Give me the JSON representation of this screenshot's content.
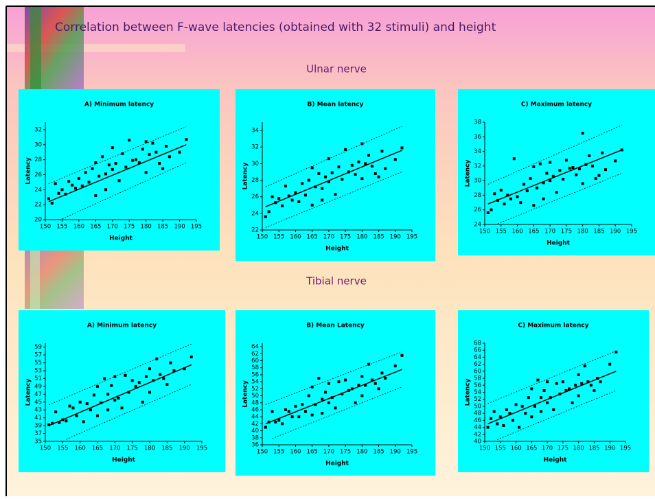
{
  "title": "Correlation between F-wave latencies (obtained with 32 stimuli) and height",
  "sections": [
    "Ulnar nerve",
    "Tibial nerve"
  ],
  "chart_data": [
    {
      "type": "scatter",
      "title": "A) Minimum latency",
      "xlabel": "Height",
      "ylabel": "Latency",
      "xlim": [
        150,
        195
      ],
      "xticks": [
        150,
        155,
        160,
        165,
        170,
        175,
        180,
        185,
        190,
        195
      ],
      "ylim": [
        20,
        33
      ],
      "yticks": [
        20,
        22,
        24,
        26,
        28,
        30,
        32
      ],
      "color": "#000000",
      "x": [
        151,
        152,
        153,
        154,
        155,
        156,
        157,
        158,
        159,
        160,
        161,
        162,
        163,
        164,
        165,
        165,
        166,
        167,
        168,
        168,
        169,
        170,
        170,
        171,
        172,
        173,
        174,
        175,
        176,
        177,
        178,
        179,
        180,
        180,
        181,
        182,
        183,
        184,
        185,
        186,
        187,
        190,
        192
      ],
      "values": [
        22.8,
        22.2,
        24.8,
        23.5,
        24,
        23.4,
        25.1,
        24.6,
        24.2,
        25.5,
        24.5,
        26.3,
        25.0,
        26.8,
        23.2,
        27.6,
        25.8,
        28.4,
        26.1,
        24.0,
        27.3,
        26.7,
        29.6,
        27.5,
        25.2,
        28.8,
        27.0,
        30.6,
        27.9,
        28.0,
        27.6,
        29.4,
        30.4,
        26.3,
        28.7,
        30.2,
        29.0,
        27.5,
        26.8,
        29.8,
        28.4,
        29.0,
        30.7
      ],
      "fit": {
        "x": [
          151,
          192
        ],
        "values": [
          22.4,
          30.0
        ]
      },
      "upper_band": {
        "x": [
          151,
          192
        ],
        "values": [
          24.8,
          32.4
        ]
      },
      "lower_band": {
        "x": [
          155,
          192
        ],
        "values": [
          20.1,
          27.6
        ]
      }
    },
    {
      "type": "scatter",
      "title": "B) Mean latency",
      "xlabel": "Height",
      "ylabel": "Latency",
      "xlim": [
        150,
        195
      ],
      "xticks": [
        150,
        155,
        160,
        165,
        170,
        175,
        180,
        185,
        190,
        195
      ],
      "ylim": [
        22,
        35
      ],
      "yticks": [
        22,
        24,
        26,
        28,
        30,
        32,
        34
      ],
      "color": "#000000",
      "x": [
        151,
        152,
        153,
        154,
        155,
        156,
        157,
        158,
        159,
        160,
        161,
        162,
        163,
        164,
        165,
        165,
        166,
        167,
        168,
        168,
        169,
        170,
        170,
        171,
        172,
        173,
        174,
        175,
        176,
        177,
        178,
        179,
        180,
        180,
        181,
        182,
        183,
        184,
        185,
        186,
        187,
        190,
        192
      ],
      "values": [
        23.6,
        24.2,
        26.0,
        25.3,
        25.8,
        24.9,
        27.3,
        26.1,
        25.6,
        26.5,
        25.4,
        27.6,
        26.2,
        28.0,
        25.0,
        29.5,
        27.2,
        28.8,
        27.0,
        25.6,
        28.4,
        27.8,
        30.6,
        28.9,
        26.3,
        29.6,
        28.1,
        31.7,
        29.0,
        29.8,
        28.7,
        30.2,
        32.4,
        28.2,
        30.0,
        31.0,
        29.7,
        28.8,
        28.4,
        31.5,
        29.4,
        30.5,
        31.9
      ],
      "fit": {
        "x": [
          151,
          192
        ],
        "values": [
          24.8,
          31.6
        ]
      },
      "upper_band": {
        "x": [
          151,
          192
        ],
        "values": [
          27.2,
          34.5
        ]
      },
      "lower_band": {
        "x": [
          151,
          192
        ],
        "values": [
          22.3,
          29.0
        ]
      }
    },
    {
      "type": "scatter",
      "title": "C) Maximum latency",
      "xlabel": "Height",
      "ylabel": "Latency",
      "xlim": [
        150,
        195
      ],
      "xticks": [
        150,
        155,
        160,
        165,
        170,
        175,
        180,
        185,
        190,
        195
      ],
      "ylim": [
        24,
        38
      ],
      "yticks": [
        24,
        26,
        28,
        30,
        32,
        34,
        36,
        38
      ],
      "color": "#000000",
      "x": [
        151,
        152,
        153,
        154,
        155,
        156,
        157,
        158,
        159,
        160,
        161,
        162,
        163,
        164,
        165,
        165,
        166,
        167,
        168,
        168,
        169,
        170,
        170,
        171,
        172,
        173,
        174,
        175,
        176,
        177,
        178,
        179,
        180,
        180,
        181,
        182,
        183,
        184,
        185,
        186,
        187,
        190,
        192
      ],
      "values": [
        25.6,
        26.0,
        28.2,
        27.3,
        28.7,
        26.8,
        28.0,
        27.5,
        33.0,
        27.8,
        27.0,
        29.5,
        28.6,
        30.3,
        26.6,
        31.9,
        29.0,
        32.3,
        29.7,
        27.5,
        31.0,
        30.0,
        32.5,
        30.6,
        28.4,
        31.4,
        30.2,
        32.8,
        31.7,
        31.8,
        30.8,
        31.6,
        36.5,
        29.6,
        32.2,
        33.4,
        32.0,
        30.3,
        30.7,
        33.8,
        31.5,
        32.7,
        34.2
      ],
      "fit": {
        "x": [
          151,
          192
        ],
        "values": [
          26.8,
          34.2
        ]
      },
      "upper_band": {
        "x": [
          151,
          192
        ],
        "values": [
          29.5,
          37.6
        ]
      },
      "lower_band": {
        "x": [
          154,
          192
        ],
        "values": [
          24.1,
          31.0
        ]
      }
    },
    {
      "type": "scatter",
      "title": "A) Minimum latency",
      "xlabel": "Height",
      "ylabel": "Latency",
      "xlim": [
        150,
        195
      ],
      "xticks": [
        150,
        155,
        160,
        165,
        170,
        175,
        180,
        185,
        190,
        195
      ],
      "ylim": [
        35,
        60
      ],
      "yticks": [
        35,
        37,
        39,
        41,
        43,
        45,
        47,
        49,
        51,
        53,
        55,
        57,
        59
      ],
      "color": "#000000",
      "x": [
        151,
        152,
        153,
        154,
        155,
        156,
        157,
        158,
        159,
        160,
        161,
        162,
        163,
        164,
        165,
        165,
        166,
        167,
        168,
        168,
        169,
        170,
        170,
        171,
        172,
        173,
        174,
        175,
        176,
        177,
        178,
        179,
        180,
        180,
        181,
        182,
        183,
        184,
        185,
        186,
        187,
        190,
        192
      ],
      "values": [
        39.2,
        39.6,
        42.5,
        39.8,
        40.5,
        40.2,
        44.0,
        43.5,
        41.5,
        45.0,
        40.0,
        44.6,
        43.0,
        46.8,
        41.5,
        49.0,
        44.8,
        51.0,
        47.0,
        43.0,
        49.2,
        45.5,
        51.5,
        46.0,
        43.5,
        51.8,
        47.5,
        50.5,
        49.0,
        50.0,
        45.0,
        51.5,
        53.5,
        47.5,
        50.5,
        56.0,
        52.0,
        51.0,
        49.5,
        55.0,
        53.0,
        53.5,
        56.5
      ],
      "fit": {
        "x": [
          151,
          192
        ],
        "values": [
          39.0,
          54.5
        ]
      },
      "upper_band": {
        "x": [
          151,
          192
        ],
        "values": [
          44.3,
          59.8
        ]
      },
      "lower_band": {
        "x": [
          156,
          192
        ],
        "values": [
          35.5,
          49.5
        ]
      }
    },
    {
      "type": "scatter",
      "title": "B) Mean Latency",
      "xlabel": "Height",
      "ylabel": "Latency",
      "xlim": [
        150,
        195
      ],
      "xticks": [
        150,
        155,
        160,
        165,
        170,
        175,
        180,
        185,
        190,
        195
      ],
      "ylim": [
        36,
        65
      ],
      "yticks": [
        36,
        38,
        40,
        42,
        44,
        46,
        48,
        50,
        52,
        54,
        56,
        58,
        60,
        62,
        64
      ],
      "color": "#000000",
      "x": [
        151,
        152,
        153,
        154,
        155,
        156,
        157,
        158,
        159,
        160,
        161,
        162,
        163,
        164,
        165,
        165,
        166,
        167,
        168,
        168,
        169,
        170,
        170,
        171,
        172,
        173,
        174,
        175,
        176,
        177,
        178,
        179,
        180,
        180,
        181,
        182,
        183,
        184,
        185,
        186,
        187,
        190,
        192
      ],
      "values": [
        41.0,
        42.5,
        45.5,
        42.5,
        43.0,
        42.0,
        46.0,
        45.5,
        44.0,
        47.0,
        44.0,
        47.5,
        45.5,
        50.0,
        44.5,
        52.5,
        47.5,
        55.0,
        49.0,
        45.0,
        51.0,
        48.0,
        53.5,
        49.5,
        46.5,
        54.0,
        50.5,
        54.5,
        51.5,
        52.0,
        48.0,
        53.0,
        55.5,
        50.0,
        53.0,
        59.0,
        54.5,
        53.5,
        52.0,
        56.5,
        55.0,
        58.5,
        61.5
      ],
      "fit": {
        "x": [
          151,
          192
        ],
        "values": [
          42.0,
          57.5
        ]
      },
      "upper_band": {
        "x": [
          151,
          192
        ],
        "values": [
          47.5,
          62.5
        ]
      },
      "lower_band": {
        "x": [
          153,
          192
        ],
        "values": [
          37.8,
          52.5
        ]
      }
    },
    {
      "type": "scatter",
      "title": "C) Maximum latency",
      "xlabel": "Height",
      "ylabel": "Latency",
      "xlim": [
        150,
        195
      ],
      "xticks": [
        150,
        155,
        160,
        165,
        170,
        175,
        180,
        185,
        190,
        195
      ],
      "ylim": [
        40,
        68
      ],
      "yticks": [
        40,
        42,
        44,
        46,
        48,
        50,
        52,
        54,
        56,
        58,
        60,
        62,
        64,
        66,
        68
      ],
      "color": "#000000",
      "x": [
        151,
        152,
        153,
        154,
        155,
        156,
        157,
        158,
        159,
        160,
        161,
        162,
        163,
        164,
        165,
        165,
        166,
        167,
        168,
        168,
        169,
        170,
        170,
        171,
        172,
        173,
        174,
        175,
        176,
        177,
        178,
        179,
        180,
        180,
        181,
        182,
        183,
        184,
        185,
        186,
        187,
        190,
        192
      ],
      "values": [
        44.0,
        46.5,
        48.5,
        45.0,
        47.0,
        44.5,
        49.0,
        48.0,
        46.0,
        50.5,
        44.0,
        50.0,
        48.0,
        52.5,
        47.0,
        55.0,
        50.0,
        57.5,
        52.5,
        48.5,
        54.5,
        51.0,
        57.0,
        52.5,
        49.0,
        56.5,
        53.5,
        57.0,
        54.5,
        55.0,
        51.0,
        56.0,
        59.0,
        53.0,
        56.5,
        61.5,
        57.0,
        56.0,
        54.5,
        58.0,
        57.0,
        62.0,
        65.5
      ],
      "fit": {
        "x": [
          151,
          192
        ],
        "values": [
          45.0,
          60.0
        ]
      },
      "upper_band": {
        "x": [
          151,
          192
        ],
        "values": [
          50.8,
          65.8
        ]
      },
      "lower_band": {
        "x": [
          154,
          192
        ],
        "values": [
          40.5,
          54.5
        ]
      }
    }
  ]
}
